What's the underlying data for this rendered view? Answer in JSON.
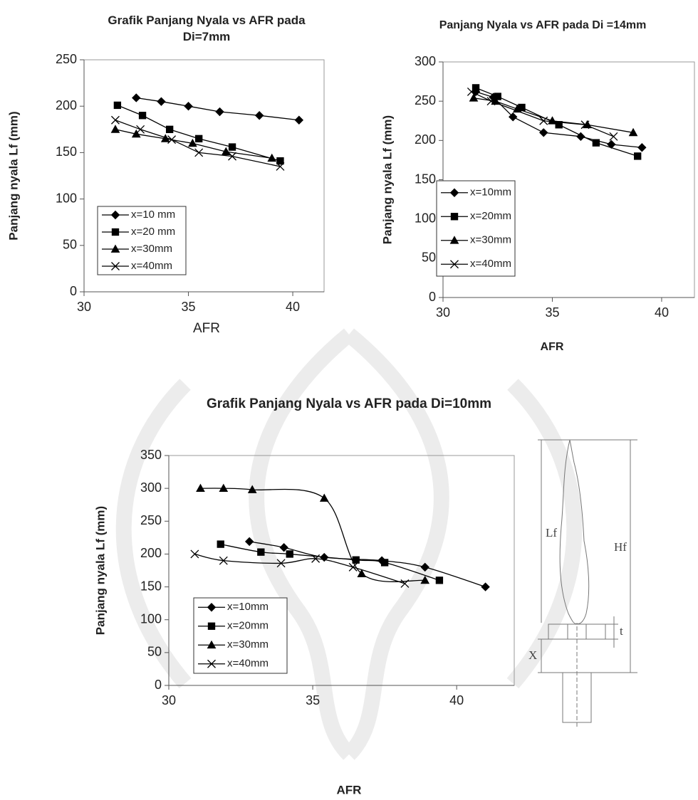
{
  "chart_data": [
    {
      "type": "line",
      "title": "Grafik Panjang Nyala vs AFR pada Di=7mm",
      "x_label": "AFR",
      "y_label": "Panjang nyala Lf (mm)",
      "xlim": [
        30,
        41.5
      ],
      "xticks": [
        30,
        35,
        40
      ],
      "ylim": [
        0,
        250
      ],
      "yticks": [
        0,
        50,
        100,
        150,
        200,
        250
      ],
      "legend": "lower left",
      "smooth": false,
      "series": [
        {
          "name": "x=10 mm",
          "color": "#000000",
          "marker": "diamond",
          "x": [
            32.5,
            33.7,
            35.0,
            36.5,
            38.4,
            40.3
          ],
          "values": [
            209,
            205,
            200,
            194,
            190,
            185
          ]
        },
        {
          "name": "x=20 mm",
          "color": "#000000",
          "marker": "square",
          "x": [
            31.6,
            32.8,
            34.1,
            35.5,
            37.1,
            39.4
          ],
          "values": [
            201,
            190,
            175,
            165,
            156,
            141
          ]
        },
        {
          "name": "x=30mm",
          "color": "#000000",
          "marker": "triangle",
          "x": [
            31.5,
            32.5,
            33.9,
            35.2,
            36.8,
            39.0
          ],
          "values": [
            175,
            170,
            165,
            160,
            151,
            144
          ]
        },
        {
          "name": "x=40mm",
          "color": "#000000",
          "marker": "cross",
          "x": [
            31.5,
            32.7,
            34.2,
            35.5,
            37.1,
            39.4
          ],
          "values": [
            185,
            175,
            164,
            150,
            146,
            135
          ]
        }
      ]
    },
    {
      "type": "line",
      "title": "Panjang Nyala vs AFR pada Di =14mm",
      "x_label": "AFR",
      "y_label": "Panjang nyala Lf (mm)",
      "xlim": [
        30,
        41.5
      ],
      "xticks": [
        30,
        35,
        40
      ],
      "ylim": [
        0,
        300
      ],
      "yticks": [
        0,
        50,
        100,
        150,
        200,
        250,
        300
      ],
      "legend": "lower left",
      "smooth": false,
      "series": [
        {
          "name": "x=10mm",
          "color": "#000000",
          "marker": "diamond",
          "x": [
            31.5,
            32.3,
            33.2,
            34.6,
            36.3,
            37.7,
            39.1
          ],
          "values": [
            262,
            255,
            230,
            210,
            205,
            195,
            191
          ]
        },
        {
          "name": "x=20mm",
          "color": "#000000",
          "marker": "square",
          "x": [
            31.5,
            32.5,
            33.6,
            35.3,
            37.0,
            38.9
          ],
          "values": [
            267,
            256,
            242,
            220,
            197,
            180
          ]
        },
        {
          "name": "x=30mm",
          "color": "#000000",
          "marker": "triangle",
          "x": [
            31.4,
            32.4,
            33.4,
            35.0,
            36.6,
            38.7
          ],
          "values": [
            254,
            250,
            240,
            225,
            220,
            210
          ]
        },
        {
          "name": "x=40mm",
          "color": "#000000",
          "marker": "cross",
          "x": [
            31.3,
            32.2,
            34.6,
            36.5,
            37.8
          ],
          "values": [
            262,
            250,
            225,
            220,
            205
          ]
        }
      ]
    },
    {
      "type": "line",
      "title": "Grafik Panjang Nyala vs AFR pada Di=10mm",
      "x_label": "AFR",
      "y_label": "Panjang nyala Lf (mm)",
      "xlim": [
        30,
        42
      ],
      "xticks": [
        30,
        35,
        40
      ],
      "ylim": [
        0,
        350
      ],
      "yticks": [
        0,
        50,
        100,
        150,
        200,
        250,
        300,
        350
      ],
      "legend": "lower left",
      "smooth": true,
      "series": [
        {
          "name": "x=10mm",
          "color": "#000000",
          "marker": "diamond",
          "x": [
            32.8,
            34.0,
            35.4,
            37.4,
            38.9,
            41.0
          ],
          "values": [
            219,
            210,
            195,
            190,
            180,
            150
          ]
        },
        {
          "name": "x=20mm",
          "color": "#000000",
          "marker": "square",
          "x": [
            31.8,
            33.2,
            34.2,
            36.5,
            37.5,
            39.4
          ],
          "values": [
            215,
            203,
            200,
            191,
            187,
            160
          ]
        },
        {
          "name": "x=30mm",
          "color": "#000000",
          "marker": "triangle",
          "x": [
            31.1,
            31.9,
            32.9,
            35.4,
            36.7,
            38.9
          ],
          "values": [
            300,
            300,
            298,
            285,
            170,
            160
          ]
        },
        {
          "name": "x=40mm",
          "color": "#000000",
          "marker": "cross",
          "x": [
            30.9,
            31.9,
            33.9,
            35.1,
            36.4,
            38.2
          ],
          "values": [
            200,
            190,
            186,
            193,
            180,
            155
          ]
        }
      ]
    }
  ],
  "diagram": {
    "labels": [
      "Lf",
      "Hf",
      "t",
      "X"
    ]
  }
}
